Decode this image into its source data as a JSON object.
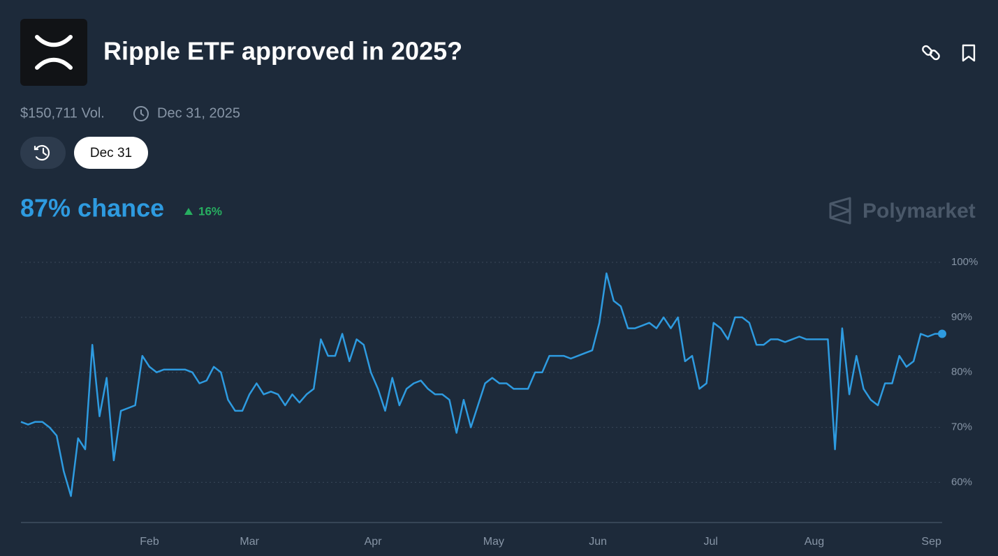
{
  "header": {
    "title": "Ripple ETF approved in 2025?",
    "volume": "$150,711 Vol.",
    "end_date": "Dec 31, 2025",
    "date_button": "Dec 31",
    "chance": "87% chance",
    "change": "16%",
    "brand": "Polymarket"
  },
  "chart_data": {
    "type": "line",
    "color": "#2e9be0",
    "grid": true,
    "values": [
      71,
      70.5,
      71,
      71,
      70,
      68.5,
      62,
      57.5,
      68,
      66,
      85,
      72,
      79,
      64,
      73,
      73.5,
      74,
      83,
      81,
      80,
      80.5,
      80.5,
      80.5,
      80.5,
      80,
      78,
      78.5,
      81,
      80,
      75,
      73,
      73,
      76,
      78,
      76,
      76.5,
      76,
      74,
      76,
      74.5,
      76,
      77,
      86,
      83,
      83,
      87,
      82,
      86,
      85,
      80,
      77,
      73,
      79,
      74,
      77,
      78,
      78.5,
      77,
      76,
      76,
      75,
      69,
      75,
      70,
      74,
      78,
      79,
      78,
      78,
      77,
      77,
      77,
      80,
      80,
      83,
      83,
      83,
      82.5,
      83,
      83.5,
      84,
      89,
      98,
      93,
      92,
      88,
      88,
      88.5,
      89,
      88,
      90,
      88,
      90,
      82,
      83,
      77,
      78,
      89,
      88,
      86,
      90,
      90,
      89,
      85,
      85,
      86,
      86,
      85.5,
      86,
      86.5,
      86,
      86,
      86,
      86,
      66,
      88,
      76,
      83,
      77,
      75,
      74,
      78,
      78,
      83,
      81,
      82,
      87,
      86.5,
      87,
      87
    ],
    "xlim": [
      0,
      129
    ],
    "xticks": [
      {
        "value": 18,
        "label": "Feb"
      },
      {
        "value": 32,
        "label": "Mar"
      },
      {
        "value": 49.3,
        "label": "Apr"
      },
      {
        "value": 66.2,
        "label": "May"
      },
      {
        "value": 80.8,
        "label": "Jun"
      },
      {
        "value": 96.6,
        "label": "Jul"
      },
      {
        "value": 111.1,
        "label": "Aug"
      },
      {
        "value": 127.5,
        "label": "Sep"
      }
    ],
    "ylim": [
      52.7,
      100
    ],
    "yticks": [
      {
        "value": 60,
        "label": "60%"
      },
      {
        "value": 70,
        "label": "70%"
      },
      {
        "value": 80,
        "label": "80%"
      },
      {
        "value": 90,
        "label": "90%"
      },
      {
        "value": 100,
        "label": "100%"
      }
    ]
  }
}
